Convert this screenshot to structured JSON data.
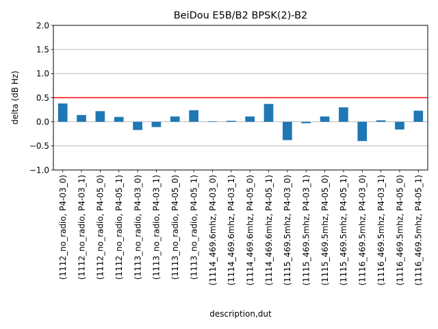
{
  "chart_data": {
    "type": "bar",
    "title": "BeiDou E5B/B2 BPSK(2)-B2",
    "xlabel": "description,dut",
    "ylabel": "delta (dB Hz)",
    "ylim": [
      -1.0,
      2.0
    ],
    "yticks": [
      -1.0,
      -0.5,
      0.0,
      0.5,
      1.0,
      1.5,
      2.0
    ],
    "ytick_labels": [
      "−1.0",
      "−0.5",
      "0.0",
      "0.5",
      "1.0",
      "1.5",
      "2.0"
    ],
    "grid": "y-axis on",
    "threshold_line": {
      "y": 0.5,
      "color": "#ff0000"
    },
    "bar_color": "#1f77b4",
    "categories": [
      "(1112_no_radio, P4-03_0)",
      "(1112_no_radio, P4-03_1)",
      "(1112_no_radio, P4-05_0)",
      "(1112_no_radio, P4-05_1)",
      "(1113_no_radio, P4-03_0)",
      "(1113_no_radio, P4-03_1)",
      "(1113_no_radio, P4-05_0)",
      "(1113_no_radio, P4-05_1)",
      "(1114_469.6mhz, P4-03_0)",
      "(1114_469.6mhz, P4-03_1)",
      "(1114_469.6mhz, P4-05_0)",
      "(1114_469.6mhz, P4-05_1)",
      "(1115_469.5mhz, P4-03_0)",
      "(1115_469.5mhz, P4-03_1)",
      "(1115_469.5mhz, P4-05_0)",
      "(1115_469.5mhz, P4-05_1)",
      "(1116_469.5mhz, P4-03_0)",
      "(1116_469.5mhz, P4-03_1)",
      "(1116_469.5mhz, P4-05_0)",
      "(1116_469.5mhz, P4-05_1)"
    ],
    "values": [
      0.38,
      0.14,
      0.22,
      0.1,
      -0.17,
      -0.11,
      0.11,
      0.24,
      0.01,
      0.02,
      0.11,
      0.37,
      -0.38,
      -0.03,
      0.11,
      0.3,
      -0.4,
      0.03,
      -0.16,
      0.23
    ]
  }
}
